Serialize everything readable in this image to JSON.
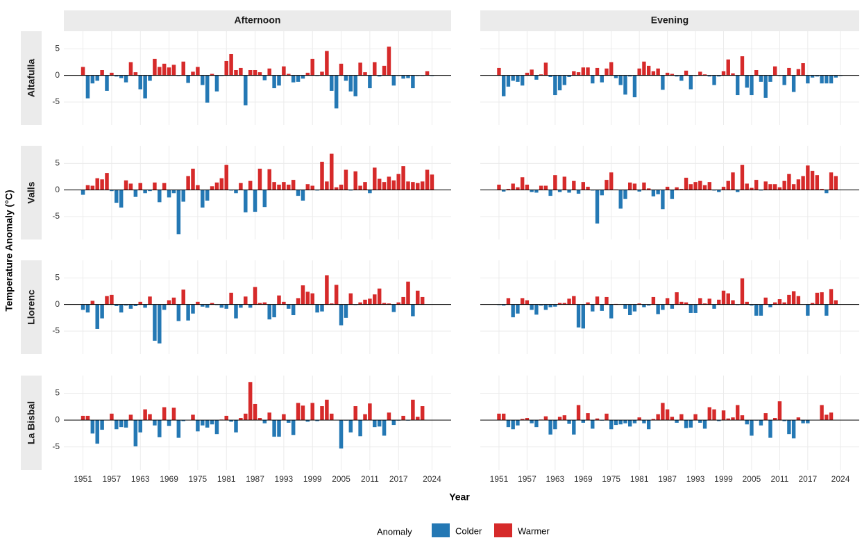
{
  "chart_data": {
    "type": "bar",
    "xlabel": "Year",
    "ylabel": "Temperature Anomaly (°C)",
    "legend": {
      "title": "Anomaly",
      "entries": [
        {
          "name": "Colder",
          "color": "#2478b4"
        },
        {
          "name": "Warmer",
          "color": "#d62a2a"
        }
      ]
    },
    "columns": [
      "Afternoon",
      "Evening"
    ],
    "x": [
      1951,
      1952,
      1953,
      1954,
      1955,
      1956,
      1957,
      1958,
      1959,
      1960,
      1961,
      1962,
      1963,
      1964,
      1965,
      1966,
      1967,
      1968,
      1969,
      1970,
      1971,
      1972,
      1973,
      1974,
      1975,
      1976,
      1977,
      1978,
      1979,
      1980,
      1981,
      1982,
      1983,
      1984,
      1985,
      1986,
      1987,
      1988,
      1989,
      1990,
      1991,
      1992,
      1993,
      1994,
      1995,
      1996,
      1997,
      1998,
      1999,
      2000,
      2001,
      2002,
      2003,
      2004,
      2005,
      2006,
      2007,
      2008,
      2009,
      2010,
      2011,
      2012,
      2013,
      2014,
      2015,
      2016,
      2017,
      2018,
      2019,
      2020,
      2021,
      2022,
      2023,
      2024
    ],
    "xlim": [
      1947,
      2028
    ],
    "xticks": [
      1951,
      1957,
      1963,
      1969,
      1975,
      1981,
      1987,
      1993,
      1999,
      2005,
      2011,
      2017,
      2024
    ],
    "ylim": [
      -9.3,
      8.3
    ],
    "yticks": [
      -5,
      0,
      5
    ],
    "grid": true,
    "rows": [
      {
        "label": "Altafulla",
        "panels": [
          {
            "values": [
              1.6,
              -4.3,
              -1.5,
              -1.0,
              1.0,
              -2.9,
              0.5,
              -0.2,
              -0.5,
              -1.3,
              2.5,
              0.6,
              -2.6,
              -4.3,
              -1.0,
              3.1,
              1.6,
              2.2,
              1.5,
              2.0,
              -0.1,
              2.6,
              -1.4,
              0.7,
              1.6,
              -1.8,
              -5.1,
              0.3,
              -3.0,
              -0.1,
              2.7,
              4.0,
              1.0,
              1.4,
              -5.6,
              1.0,
              1.0,
              0.6,
              -0.9,
              1.3,
              -2.4,
              -1.9,
              1.7,
              0.3,
              -1.3,
              -1.2,
              -0.6,
              0.5,
              3.1,
              -0.1,
              0.7,
              4.6,
              -2.9,
              -6.2,
              2.2,
              -1.0,
              -3.0,
              -3.9,
              2.4,
              0.6,
              -2.4,
              2.5,
              -0.2,
              1.8,
              5.4,
              -1.9,
              -0.1,
              -0.6,
              -0.5,
              -2.4,
              -0.1,
              -0.1,
              0.8,
              -0.1
            ]
          },
          {
            "values": [
              1.4,
              -3.9,
              -2.1,
              -1.0,
              -1.2,
              -1.9,
              0.5,
              1.1,
              -0.8,
              0.2,
              2.4,
              -0.3,
              -3.7,
              -2.8,
              -1.8,
              -0.3,
              0.8,
              0.6,
              1.5,
              1.5,
              -1.5,
              1.4,
              -1.3,
              1.3,
              2.5,
              -0.5,
              -1.8,
              -3.6,
              -0.2,
              -4.1,
              1.3,
              2.6,
              1.8,
              0.8,
              1.3,
              -2.7,
              0.5,
              0.3,
              -0.2,
              -1.0,
              0.9,
              -2.6,
              -0.1,
              0.7,
              0.2,
              -0.2,
              -1.8,
              -0.2,
              0.8,
              3.0,
              0.4,
              -3.7,
              3.6,
              -2.3,
              -3.7,
              1.0,
              -1.2,
              -4.2,
              -1.2,
              1.7,
              -0.1,
              -1.8,
              1.4,
              -3.1,
              1.2,
              2.3,
              -1.5,
              -0.4,
              -0.2,
              -1.5,
              -1.5,
              -1.5,
              -0.4,
              -0.1
            ]
          }
        ]
      },
      {
        "label": "Valls",
        "panels": [
          {
            "values": [
              -0.9,
              0.9,
              0.8,
              2.2,
              2.0,
              3.2,
              -0.2,
              -2.4,
              -3.3,
              1.8,
              1.2,
              -1.3,
              1.3,
              -0.6,
              -0.2,
              1.4,
              -2.3,
              1.3,
              -1.4,
              -0.6,
              -8.3,
              -2.2,
              2.6,
              4.0,
              0.9,
              -3.3,
              -2.0,
              0.7,
              1.4,
              2.2,
              4.7,
              -0.1,
              -0.6,
              1.3,
              -4.2,
              1.7,
              -4.1,
              4.0,
              -3.2,
              3.9,
              1.5,
              1.0,
              1.5,
              1.0,
              1.9,
              -1.1,
              -2.0,
              1.1,
              0.8,
              -0.1,
              5.3,
              1.6,
              6.8,
              0.5,
              1.0,
              3.8,
              -0.1,
              3.5,
              0.8,
              1.5,
              -0.6,
              4.2,
              2.1,
              1.5,
              2.5,
              1.8,
              3.0,
              4.5,
              1.6,
              1.5,
              1.3,
              1.6,
              3.8,
              2.9
            ]
          },
          {
            "values": [
              1.0,
              -0.3,
              0.2,
              1.2,
              0.5,
              2.4,
              1.0,
              -0.4,
              -0.5,
              0.8,
              0.8,
              -1.1,
              2.8,
              -0.4,
              2.5,
              -0.5,
              1.7,
              -0.7,
              1.5,
              0.6,
              -0.1,
              -6.3,
              -1.0,
              1.9,
              3.3,
              0.1,
              -3.5,
              -1.7,
              1.4,
              1.2,
              -0.3,
              1.4,
              0.3,
              -1.2,
              -0.8,
              -3.6,
              0.6,
              -1.7,
              0.5,
              0.2,
              2.3,
              1.1,
              1.5,
              1.7,
              0.9,
              1.5,
              -0.1,
              -0.4,
              0.6,
              1.7,
              3.3,
              -0.4,
              4.7,
              1.2,
              0.4,
              1.9,
              -0.1,
              1.6,
              1.1,
              1.1,
              0.5,
              1.7,
              3.0,
              1.1,
              2.0,
              2.6,
              4.6,
              3.6,
              2.8,
              0.2,
              -0.6,
              3.3,
              2.6,
              0.0
            ]
          }
        ]
      },
      {
        "label": "Llorenc",
        "panels": [
          {
            "values": [
              -1.0,
              -1.5,
              0.7,
              -4.6,
              -2.6,
              1.6,
              1.8,
              -0.3,
              -1.5,
              -0.2,
              -0.8,
              -0.3,
              0.5,
              -0.6,
              1.5,
              -6.8,
              -7.3,
              -1.0,
              0.8,
              1.3,
              -3.1,
              2.8,
              -3.0,
              -1.7,
              0.5,
              -0.4,
              -0.6,
              0.3,
              -0.1,
              -0.6,
              -0.8,
              2.2,
              -2.6,
              -0.6,
              1.5,
              -0.6,
              3.3,
              0.3,
              0.4,
              -2.8,
              -2.4,
              1.7,
              0.5,
              -0.8,
              -2.0,
              1.2,
              3.6,
              2.4,
              2.1,
              -1.5,
              -1.3,
              5.5,
              0.2,
              3.7,
              -3.9,
              -2.5,
              2.1,
              -0.1,
              0.4,
              0.9,
              1.1,
              1.9,
              3.0,
              0.3,
              0.2,
              -1.4,
              0.4,
              1.4,
              4.3,
              -2.2,
              2.6,
              1.4,
              0.0,
              0.0
            ]
          },
          {
            "values": [
              -0.1,
              -0.2,
              1.2,
              -2.4,
              -1.7,
              1.2,
              0.8,
              -1.0,
              -1.9,
              -0.2,
              -1.0,
              -0.5,
              -0.4,
              0.3,
              0.3,
              1.1,
              1.6,
              -4.3,
              -4.5,
              0.4,
              -1.3,
              1.5,
              -1.2,
              1.4,
              -2.6,
              0.1,
              0.0,
              -0.8,
              -2.0,
              -1.3,
              0.2,
              -0.5,
              -0.2,
              1.4,
              -1.8,
              -1.0,
              1.2,
              -0.8,
              2.3,
              0.5,
              0.4,
              -1.6,
              -1.6,
              1.2,
              0.2,
              1.1,
              -0.8,
              0.9,
              2.6,
              2.1,
              0.8,
              -0.1,
              4.9,
              0.5,
              -0.2,
              -2.1,
              -2.1,
              1.3,
              -0.5,
              0.4,
              1.0,
              0.4,
              1.8,
              2.5,
              1.6,
              0.0,
              -2.1,
              0.3,
              2.2,
              2.3,
              -2.1,
              2.9,
              0.8,
              0.0
            ]
          }
        ]
      },
      {
        "label": "La Bisbal",
        "panels": [
          {
            "values": [
              0.8,
              0.8,
              -2.5,
              -4.4,
              -1.8,
              0.0,
              1.2,
              -1.7,
              -1.3,
              -1.4,
              1.0,
              -4.9,
              -2.3,
              2.0,
              1.1,
              -1.0,
              -3.2,
              2.4,
              -1.1,
              2.3,
              -3.3,
              -0.2,
              0.0,
              1.0,
              -2.1,
              -1.0,
              -1.4,
              -0.8,
              -2.6,
              0.1,
              0.8,
              -0.3,
              -2.3,
              0.4,
              1.2,
              7.1,
              3.0,
              0.4,
              -0.6,
              1.4,
              -3.1,
              -3.1,
              1.1,
              -0.5,
              -2.8,
              3.2,
              2.7,
              -0.3,
              3.2,
              -0.2,
              2.6,
              3.8,
              1.2,
              0.0,
              -5.3,
              -0.1,
              -2.3,
              2.6,
              -3.0,
              1.1,
              3.1,
              -1.3,
              -1.2,
              -2.9,
              1.4,
              -0.9,
              -0.1,
              0.8,
              -0.1,
              3.8,
              0.6,
              2.6,
              0.0,
              0.0
            ]
          },
          {
            "values": [
              1.2,
              1.2,
              -1.3,
              -1.7,
              -1.0,
              0.2,
              0.4,
              -0.6,
              -1.3,
              0.1,
              0.7,
              -2.7,
              -1.7,
              0.6,
              0.9,
              -0.7,
              -2.7,
              2.8,
              -0.5,
              1.3,
              -1.6,
              0.3,
              -0.1,
              1.2,
              -1.7,
              -0.9,
              -0.8,
              -0.6,
              -1.2,
              -0.6,
              0.5,
              -0.6,
              -1.7,
              0.2,
              1.1,
              3.2,
              2.0,
              0.6,
              -0.5,
              1.1,
              -1.5,
              -1.4,
              1.1,
              -0.5,
              -1.6,
              2.4,
              2.0,
              -0.2,
              1.8,
              0.3,
              0.5,
              2.8,
              0.9,
              -0.8,
              -2.9,
              -0.1,
              -1.0,
              1.3,
              -3.3,
              0.4,
              3.5,
              -0.2,
              -2.6,
              -3.4,
              0.5,
              -0.6,
              -0.6,
              0.0,
              0.0,
              2.8,
              1.0,
              1.4,
              0.0,
              0.0
            ]
          }
        ]
      }
    ]
  }
}
